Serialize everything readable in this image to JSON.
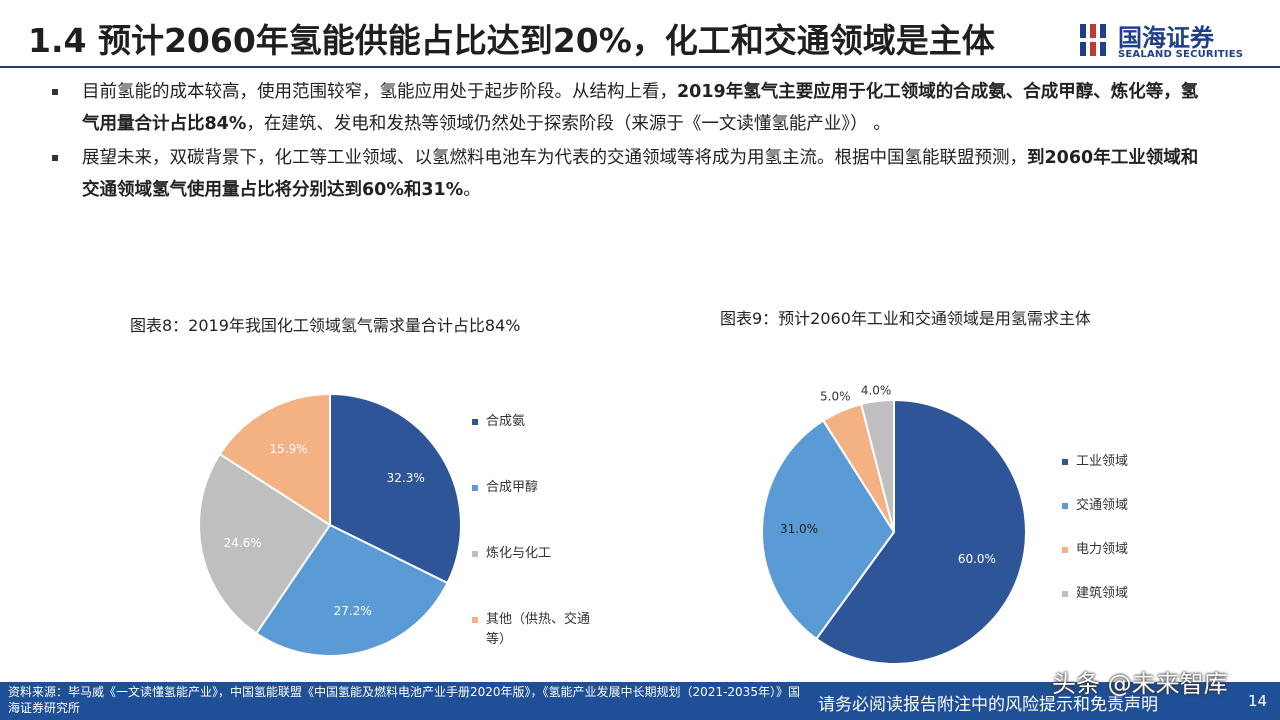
{
  "header": {
    "title": "1.4 预计2060年氢能供能占比达到20%，化工和交通领域是主体",
    "logo_cn": "国海证券",
    "logo_en": "SEALAND SECURITIES",
    "accent": "#1f3f8a"
  },
  "bullets": [
    {
      "segments": [
        {
          "text": "目前氢能的成本较高，使用范围较窄，氢能应用处于起步阶段。从结构上看，",
          "bold": false
        },
        {
          "text": "2019年氢气主要应用于化工领域的合成氨、合成甲醇、炼化等，氢气用量合计占比84%",
          "bold": true
        },
        {
          "text": "，在建筑、发电和发热等领域仍然处于探索阶段（来源于《一文读懂氢能产业》） 。",
          "bold": false
        }
      ]
    },
    {
      "segments": [
        {
          "text": "展望未来，双碳背景下，化工等工业领域、以氢燃料电池车为代表的交通领域等将成为用氢主流。根据中国氢能联盟预测，",
          "bold": false
        },
        {
          "text": "到2060年工业领域和交通领域氢气使用量占比将分别达到60%和31%",
          "bold": true
        },
        {
          "text": "。",
          "bold": false
        }
      ]
    }
  ],
  "chart_data": [
    {
      "type": "pie",
      "title": "图表8：2019年我国化工领域氢气需求量合计占比84%",
      "categories": [
        "合成氨",
        "合成甲醇",
        "炼化与化工",
        "其他（供热、交通等）"
      ],
      "values": [
        32.3,
        27.2,
        24.6,
        15.9
      ],
      "labels": [
        "32.3%",
        "27.2%",
        "24.6%",
        "15.9%"
      ],
      "colors": [
        "#2e5597",
        "#5b9bd5",
        "#bfbfbf",
        "#f4b183"
      ],
      "legend_lines": [
        [
          "合成氨"
        ],
        [
          "合成甲醇"
        ],
        [
          "炼化与化工"
        ],
        [
          "其他（供热、交通",
          "等）"
        ]
      ],
      "legend_position": "right"
    },
    {
      "type": "pie",
      "title": "图表9：预计2060年工业和交通领域是用氢需求主体",
      "categories": [
        "工业领域",
        "交通领域",
        "电力领域",
        "建筑领域"
      ],
      "values": [
        60.0,
        31.0,
        5.0,
        4.0
      ],
      "labels": [
        "60.0%",
        "31.0%",
        "5.0%",
        "4.0%"
      ],
      "colors": [
        "#2e5597",
        "#5b9bd5",
        "#f4b183",
        "#bfbfbf"
      ],
      "legend_lines": [
        [
          "工业领域"
        ],
        [
          "交通领域"
        ],
        [
          "电力领域"
        ],
        [
          "建筑领域"
        ]
      ],
      "legend_position": "right"
    }
  ],
  "footer": {
    "source": "资料来源：毕马威《一文读懂氢能产业》，中国氢能联盟《中国氢能及燃料电池产业手册2020年版》，《氢能产业发展中长期规划（2021-2035年）》国海证券研究所",
    "note": "请务必阅读报告附注中的风险提示和免责声明",
    "page": "14",
    "watermark": "头条 @未来智库"
  }
}
